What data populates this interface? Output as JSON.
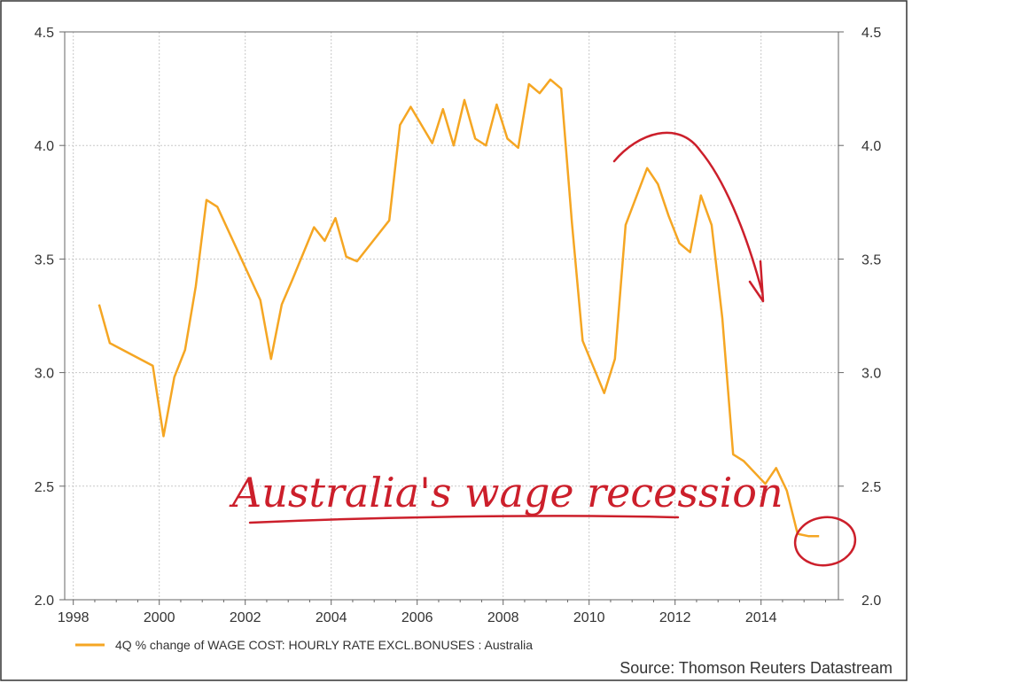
{
  "chart_data": {
    "type": "line",
    "title": "",
    "xlabel": "",
    "ylabel": "",
    "xlim": [
      1997.8,
      2015.8
    ],
    "ylim": [
      2.0,
      4.5
    ],
    "grid": true,
    "x_ticks": [
      1998,
      2000,
      2002,
      2004,
      2006,
      2008,
      2010,
      2012,
      2014
    ],
    "y_ticks": [
      2.0,
      2.5,
      3.0,
      3.5,
      4.0,
      4.5
    ],
    "y_tick_labels": [
      "2.0",
      "2.5",
      "3.0",
      "3.5",
      "4.0",
      "4.5"
    ],
    "legend_position": "bottom-left",
    "series": [
      {
        "name": "4Q % change of WAGE COST: HOURLY RATE EXCL.BONUSES : Australia",
        "color": "#f5a623",
        "x": [
          1998.6,
          1998.85,
          1999.85,
          2000.1,
          2000.35,
          2000.6,
          2000.85,
          2001.1,
          2001.35,
          2002.35,
          2002.6,
          2002.85,
          2003.1,
          2003.6,
          2003.85,
          2004.1,
          2004.35,
          2004.6,
          2004.85,
          2005.35,
          2005.6,
          2005.85,
          2006.35,
          2006.6,
          2006.85,
          2007.1,
          2007.35,
          2007.6,
          2007.85,
          2008.1,
          2008.35,
          2008.6,
          2008.85,
          2009.1,
          2009.35,
          2009.6,
          2009.85,
          2010.35,
          2010.6,
          2010.85,
          2011.35,
          2011.6,
          2011.85,
          2012.1,
          2012.35,
          2012.6,
          2012.85,
          2013.1,
          2013.35,
          2013.6,
          2014.1,
          2014.35,
          2014.6,
          2014.85,
          2015.1,
          2015.35
        ],
        "values": [
          3.3,
          3.13,
          3.03,
          2.72,
          2.98,
          3.1,
          3.38,
          3.76,
          3.73,
          3.32,
          3.06,
          3.3,
          3.41,
          3.64,
          3.58,
          3.68,
          3.51,
          3.49,
          3.55,
          3.67,
          4.09,
          4.17,
          4.01,
          4.16,
          4.0,
          4.2,
          4.03,
          4.0,
          4.18,
          4.03,
          3.99,
          4.27,
          4.23,
          4.29,
          4.25,
          3.66,
          3.14,
          2.91,
          3.06,
          3.65,
          3.9,
          3.83,
          3.69,
          3.57,
          3.53,
          3.78,
          3.65,
          3.24,
          2.64,
          2.61,
          2.51,
          2.58,
          2.48,
          2.29,
          2.28,
          2.28
        ]
      }
    ]
  },
  "annotation": {
    "handwritten_note": "Australia's wage recession"
  },
  "source_label": "Source: Thomson Reuters Datastream"
}
